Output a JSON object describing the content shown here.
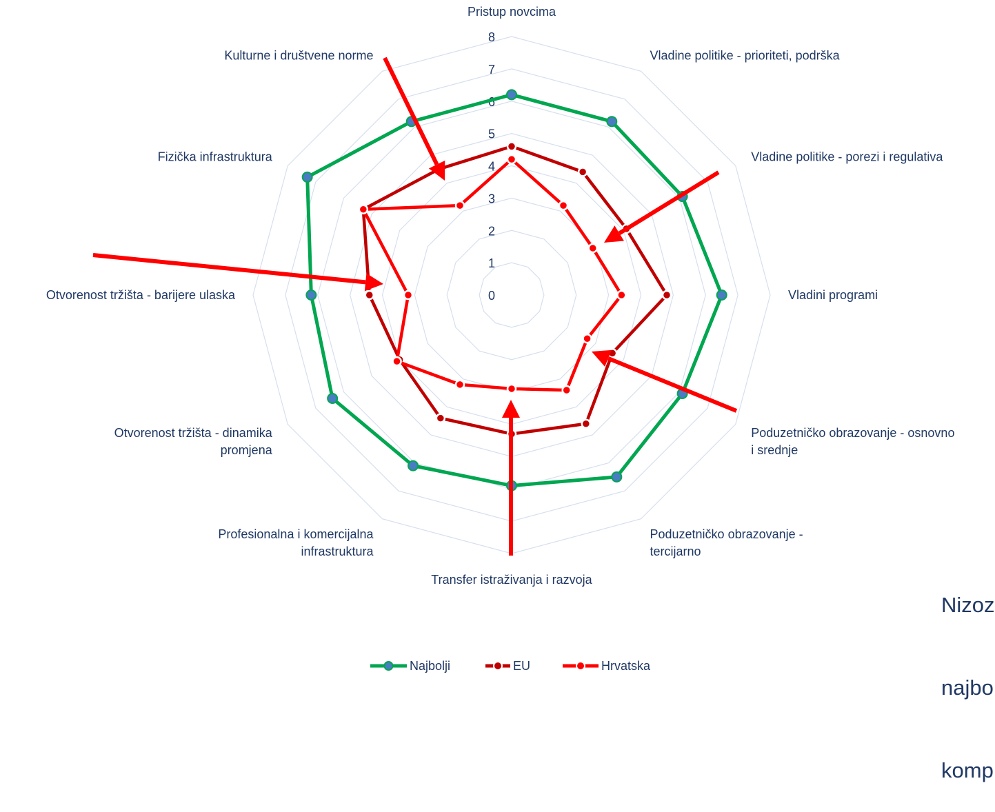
{
  "chart_data": {
    "type": "radar",
    "axes": [
      [
        "Pristup novcima"
      ],
      [
        "Vladine politike - prioriteti, podrška"
      ],
      [
        "Vladine politike - porezi i regulativa"
      ],
      [
        "Vladini programi"
      ],
      [
        "Poduzetničko obrazovanje - osnovno",
        "i srednje"
      ],
      [
        "Poduzetničko obrazovanje -",
        "tercijarno"
      ],
      [
        "Transfer istraživanja i razvoja"
      ],
      [
        "Profesionalna i komercijalna",
        "infrastruktura"
      ],
      [
        "Otvorenost tržišta - dinamika",
        "promjena"
      ],
      [
        "Otvorenost tržišta - barijere ulaska"
      ],
      [
        "Fizička infrastruktura"
      ],
      [
        "Kulturne i društvene norme"
      ]
    ],
    "rmin": 0,
    "rmax": 8,
    "ticks": [
      "0",
      "1",
      "2",
      "3",
      "4",
      "5",
      "6",
      "7",
      "8"
    ],
    "series": [
      {
        "name": "Najbolji",
        "color": "#00a650",
        "marker": "#4a7cc4",
        "values": [
          6.2,
          6.2,
          6.1,
          6.5,
          6.1,
          6.5,
          5.9,
          6.1,
          6.4,
          6.2,
          7.3,
          6.2
        ]
      },
      {
        "name": "EU",
        "color": "#c00000",
        "marker": "#c00000",
        "values": [
          4.6,
          4.4,
          4.1,
          4.8,
          3.6,
          4.6,
          4.3,
          4.4,
          4.0,
          4.4,
          5.3,
          4.5
        ]
      },
      {
        "name": "Hrvatska",
        "color": "#ff0000",
        "marker": "#ff0000",
        "values": [
          4.2,
          3.2,
          2.9,
          3.4,
          2.7,
          3.4,
          2.9,
          3.2,
          4.1,
          3.2,
          5.3,
          3.2
        ]
      }
    ],
    "legend_position": "bottom-center",
    "grid": true
  },
  "side_note": {
    "lines": [
      "Nizoze",
      "najbo",
      "komp"
    ]
  }
}
